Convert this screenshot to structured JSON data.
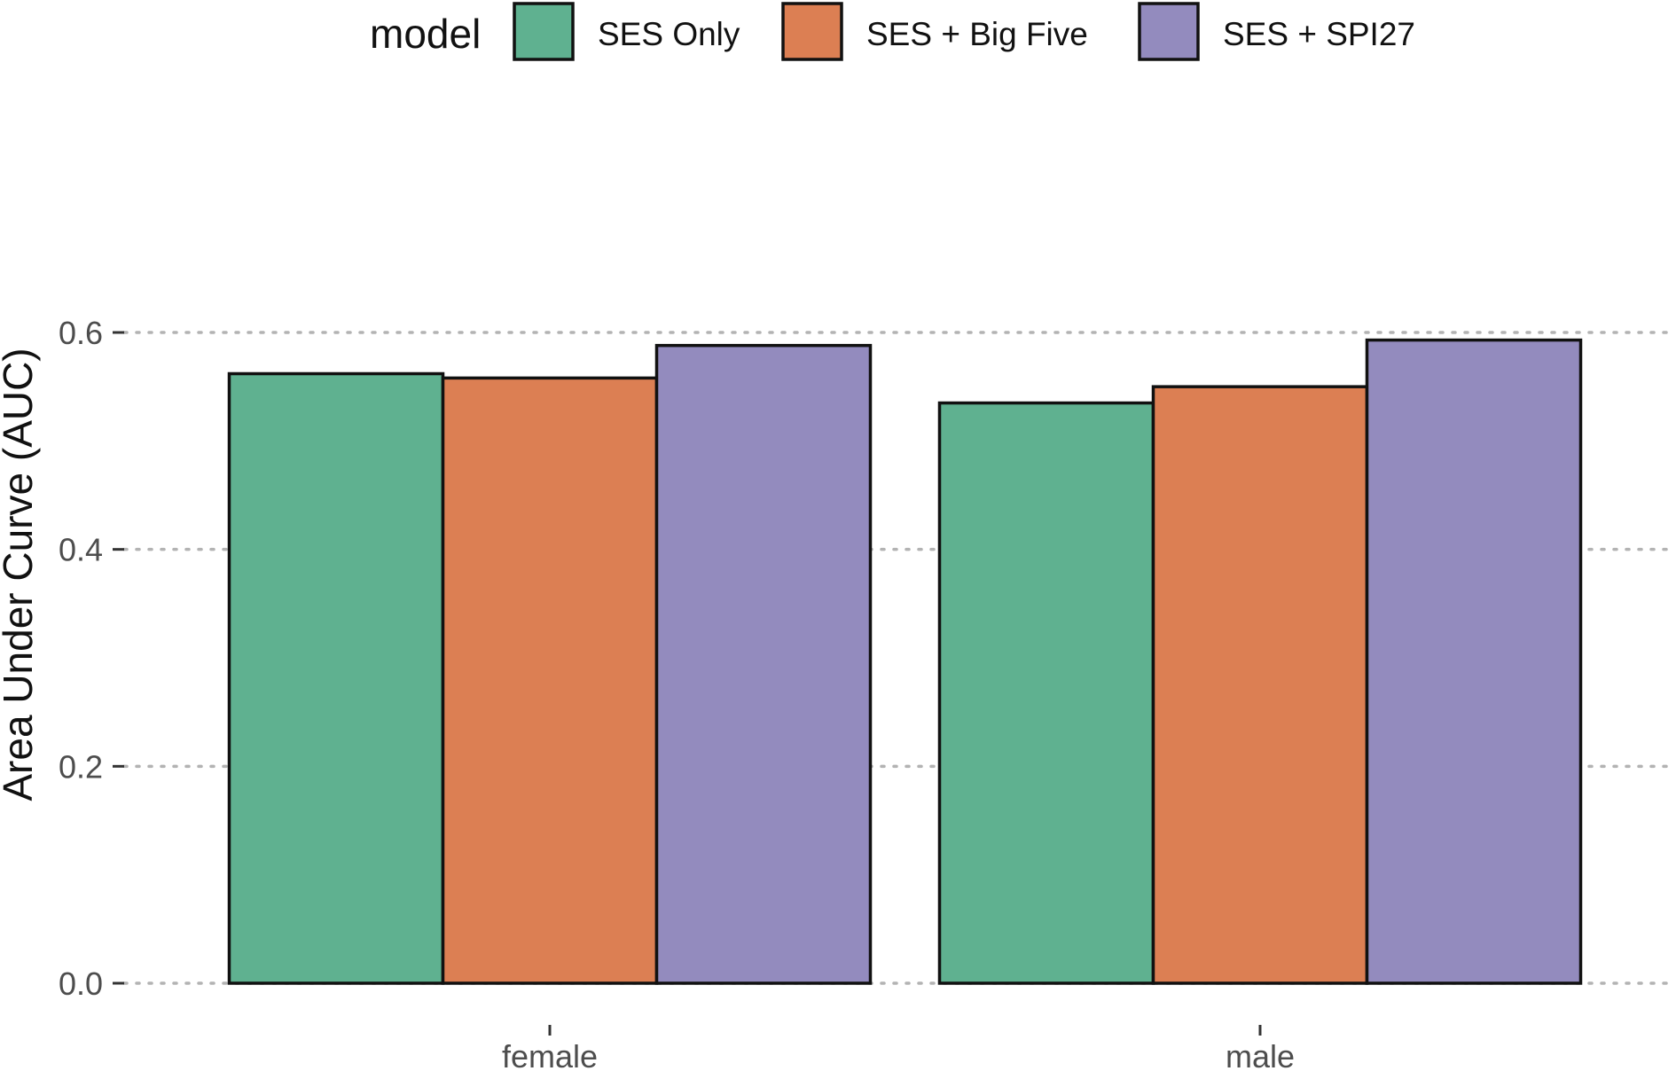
{
  "chart_data": {
    "type": "bar",
    "categories": [
      "female",
      "male"
    ],
    "series": [
      {
        "name": "SES Only",
        "values": [
          0.562,
          0.535
        ],
        "color": "#5fb190"
      },
      {
        "name": "SES + Big Five",
        "values": [
          0.558,
          0.55
        ],
        "color": "#dc7f53"
      },
      {
        "name": "SES + SPI27",
        "values": [
          0.588,
          0.593
        ],
        "color": "#938bbe"
      }
    ],
    "legend": {
      "title": "model",
      "position": "top"
    },
    "title": "",
    "xlabel": "",
    "ylabel": "Area Under Curve (AUC)",
    "ylim": [
      0,
      0.6
    ],
    "yticks": [
      0.0,
      0.2,
      0.4,
      0.6
    ],
    "ytick_labels": [
      "0.0",
      "0.2",
      "0.4",
      "0.6"
    ],
    "grid": "horizontal dotted",
    "colors": {
      "bar_outline": "#111111",
      "grid": "#b3b3b3"
    }
  }
}
